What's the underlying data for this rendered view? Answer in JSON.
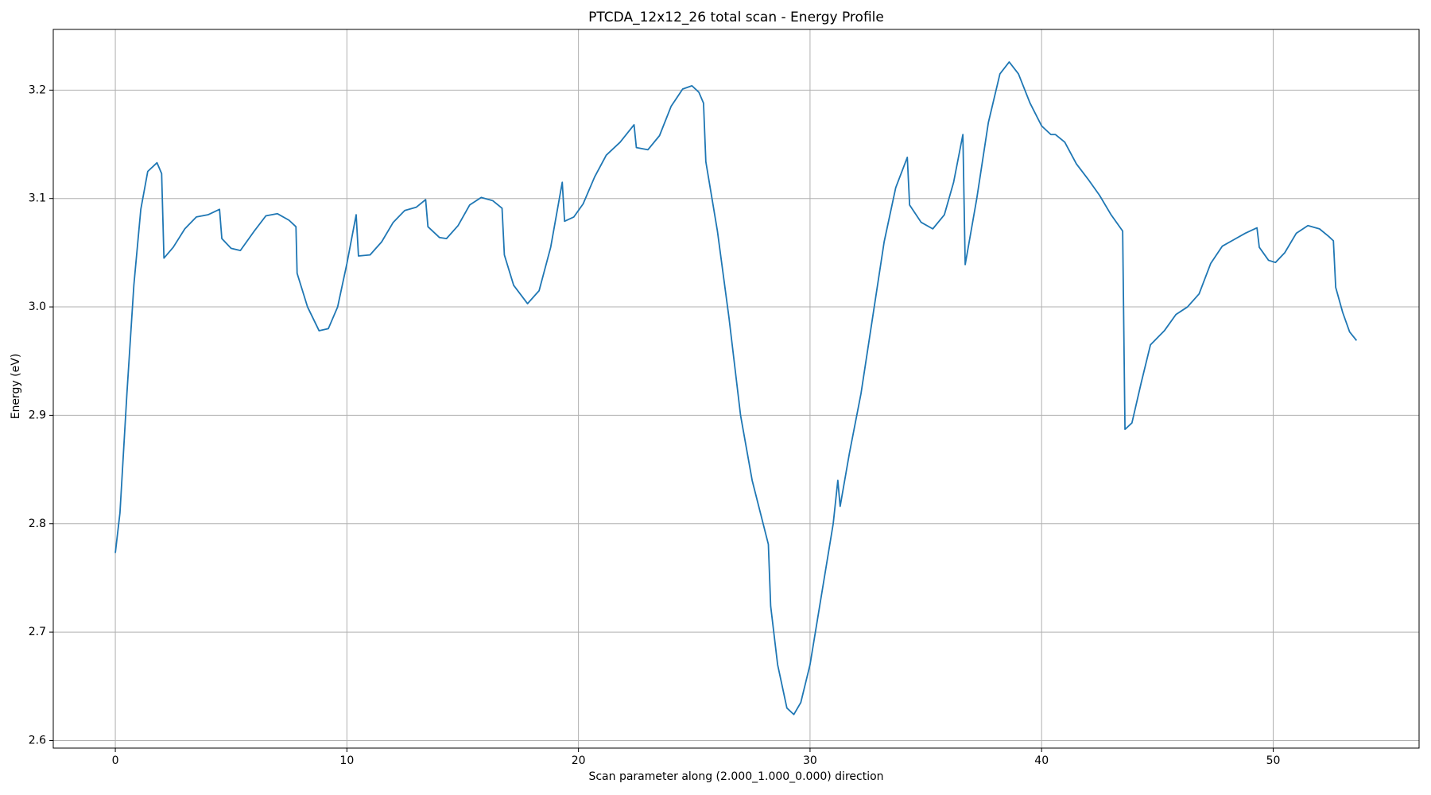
{
  "chart_data": {
    "type": "line",
    "title": "PTCDA_12x12_26 total scan - Energy Profile",
    "xlabel": "Scan parameter along (2.000_1.000_0.000) direction",
    "ylabel": "Energy (eV)",
    "color": "#1f77b4",
    "grid": true,
    "xlim": [
      -2.68,
      56.3
    ],
    "ylim": [
      2.593,
      3.256
    ],
    "xticks": [
      0,
      10,
      20,
      30,
      40,
      50
    ],
    "yticks": [
      2.6,
      2.7,
      2.8,
      2.9,
      {
        "value": 3,
        "label": "3.0"
      },
      3.1,
      3.2
    ],
    "x": [
      0,
      0.2,
      0.5,
      0.8,
      1.1,
      1.4,
      1.8,
      2.0,
      2.1,
      2.5,
      3.0,
      3.5,
      4.0,
      4.5,
      4.6,
      5.0,
      5.4,
      6.0,
      6.5,
      7.0,
      7.5,
      7.8,
      7.85,
      8.3,
      8.8,
      9.2,
      9.6,
      10.0,
      10.4,
      10.5,
      11.0,
      11.5,
      12.0,
      12.5,
      13.0,
      13.4,
      13.5,
      14.0,
      14.3,
      14.8,
      15.3,
      15.8,
      16.3,
      16.7,
      16.8,
      17.2,
      17.8,
      18.3,
      18.8,
      19.3,
      19.4,
      19.8,
      20.2,
      20.7,
      21.2,
      21.8,
      22.4,
      22.5,
      23.0,
      23.5,
      24.0,
      24.5,
      24.9,
      25.2,
      25.4,
      25.5,
      26.0,
      26.5,
      27.0,
      27.5,
      28.2,
      28.3,
      28.6,
      29.0,
      29.3,
      29.6,
      30.0,
      30.5,
      31.0,
      31.2,
      31.3,
      31.7,
      32.2,
      32.7,
      33.2,
      33.7,
      34.2,
      34.3,
      34.8,
      35.3,
      35.8,
      36.2,
      36.6,
      36.7,
      37.2,
      37.7,
      38.2,
      38.6,
      39.0,
      39.5,
      40.0,
      40.4,
      40.6,
      41.0,
      41.5,
      42.0,
      42.5,
      43.0,
      43.5,
      43.6,
      43.9,
      44.3,
      44.7,
      45.3,
      45.8,
      46.3,
      46.8,
      47.3,
      47.8,
      48.3,
      48.8,
      49.3,
      49.4,
      49.8,
      50.1,
      50.5,
      51.0,
      51.5,
      52.0,
      52.4,
      52.6,
      52.7,
      53.0,
      53.3,
      53.6
    ],
    "values": [
      2.773,
      2.81,
      2.92,
      3.02,
      3.09,
      3.125,
      3.133,
      3.123,
      3.045,
      3.055,
      3.072,
      3.083,
      3.085,
      3.09,
      3.063,
      3.054,
      3.052,
      3.07,
      3.084,
      3.086,
      3.08,
      3.074,
      3.031,
      3.0,
      2.978,
      2.98,
      3.0,
      3.04,
      3.085,
      3.047,
      3.048,
      3.06,
      3.078,
      3.089,
      3.092,
      3.099,
      3.074,
      3.064,
      3.063,
      3.075,
      3.094,
      3.101,
      3.098,
      3.091,
      3.048,
      3.02,
      3.003,
      3.015,
      3.055,
      3.115,
      3.079,
      3.083,
      3.095,
      3.12,
      3.14,
      3.152,
      3.168,
      3.147,
      3.145,
      3.158,
      3.185,
      3.201,
      3.204,
      3.198,
      3.188,
      3.134,
      3.07,
      2.99,
      2.9,
      2.84,
      2.781,
      2.724,
      2.67,
      2.63,
      2.624,
      2.635,
      2.67,
      2.735,
      2.8,
      2.84,
      2.816,
      2.865,
      2.92,
      2.99,
      3.06,
      3.11,
      3.138,
      3.094,
      3.078,
      3.072,
      3.085,
      3.115,
      3.159,
      3.039,
      3.1,
      3.17,
      3.215,
      3.226,
      3.215,
      3.188,
      3.167,
      3.159,
      3.159,
      3.152,
      3.132,
      3.118,
      3.103,
      3.085,
      3.07,
      2.887,
      2.893,
      2.93,
      2.965,
      2.978,
      2.993,
      3.0,
      3.012,
      3.04,
      3.056,
      3.062,
      3.068,
      3.073,
      3.055,
      3.043,
      3.041,
      3.05,
      3.068,
      3.075,
      3.072,
      3.065,
      3.061,
      3.018,
      2.995,
      2.977,
      2.969
    ]
  }
}
